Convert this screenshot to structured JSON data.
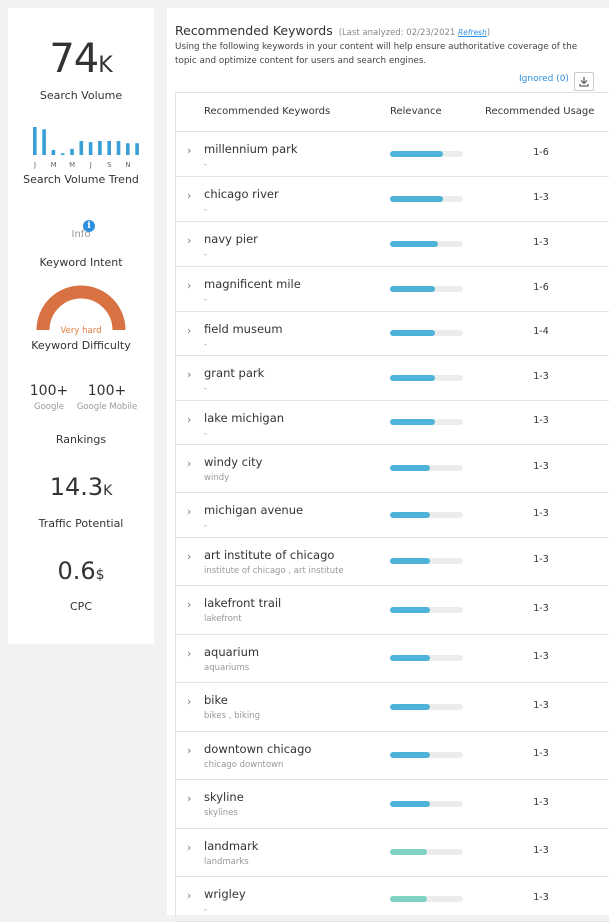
{
  "sidebar": {
    "search_volume": {
      "value": "74",
      "unit": "K",
      "label": "Search Volume"
    },
    "trend": {
      "label": "Search Volume Trend",
      "months": [
        "J",
        "M",
        "M",
        "J",
        "S",
        "N"
      ],
      "values": [
        100,
        92,
        18,
        6,
        22,
        50,
        46,
        50,
        50,
        50,
        42,
        42
      ]
    },
    "info_label": "Info",
    "intent_label": "Keyword Intent",
    "difficulty": {
      "value_label": "Very hard",
      "label": "Keyword Difficulty",
      "level": 1.0
    },
    "rankings": {
      "google_value": "100+",
      "google_label": "Google",
      "mobile_value": "100+",
      "mobile_label": "Google Mobile",
      "label": "Rankings"
    },
    "traffic": {
      "value": "14.3",
      "unit": "K",
      "label": "Traffic Potential"
    },
    "cpc": {
      "value": "0.6",
      "unit": "$",
      "label": "CPC"
    }
  },
  "main": {
    "title": "Recommended Keywords",
    "analyzed": "(Last analyzed: 02/23/2021",
    "refresh": "Refresh",
    "analyzed_close": ")",
    "description": "Using the following keywords in your content will help ensure authoritative coverage of the topic and optimize content for users and search engines.",
    "ignored": "Ignored (0)",
    "columns": [
      "Recommended Keywords",
      "Relevance",
      "Recommended Usage"
    ],
    "colors": {
      "blue": "#4fb3d9",
      "teal": "#7fd1c4"
    },
    "rows": [
      {
        "keyword": "millennium park",
        "variants": "-",
        "relevance": 0.72,
        "color": "blue",
        "usage": "1-6"
      },
      {
        "keyword": "chicago river",
        "variants": "-",
        "relevance": 0.72,
        "color": "blue",
        "usage": "1-3"
      },
      {
        "keyword": "navy pier",
        "variants": "-",
        "relevance": 0.66,
        "color": "blue",
        "usage": "1-3"
      },
      {
        "keyword": "magnificent mile",
        "variants": "-",
        "relevance": 0.61,
        "color": "blue",
        "usage": "1-6"
      },
      {
        "keyword": "field museum",
        "variants": "-",
        "relevance": 0.61,
        "color": "blue",
        "usage": "1-4"
      },
      {
        "keyword": "grant park",
        "variants": "-",
        "relevance": 0.61,
        "color": "blue",
        "usage": "1-3"
      },
      {
        "keyword": "lake michigan",
        "variants": "-",
        "relevance": 0.61,
        "color": "blue",
        "usage": "1-3"
      },
      {
        "keyword": "windy city",
        "variants": "windy",
        "relevance": 0.55,
        "color": "blue",
        "usage": "1-3"
      },
      {
        "keyword": "michigan avenue",
        "variants": "-",
        "relevance": 0.55,
        "color": "blue",
        "usage": "1-3"
      },
      {
        "keyword": "art institute of chicago",
        "variants": "institute of chicago ,  art institute",
        "relevance": 0.55,
        "color": "blue",
        "usage": "1-3"
      },
      {
        "keyword": "lakefront trail",
        "variants": "lakefront",
        "relevance": 0.55,
        "color": "blue",
        "usage": "1-3"
      },
      {
        "keyword": "aquarium",
        "variants": "aquariums",
        "relevance": 0.55,
        "color": "blue",
        "usage": "1-3"
      },
      {
        "keyword": "bike",
        "variants": "bikes ,  biking",
        "relevance": 0.55,
        "color": "blue",
        "usage": "1-3"
      },
      {
        "keyword": "downtown chicago",
        "variants": "chicago downtown",
        "relevance": 0.55,
        "color": "blue",
        "usage": "1-3"
      },
      {
        "keyword": "skyline",
        "variants": "skylines",
        "relevance": 0.55,
        "color": "blue",
        "usage": "1-3"
      },
      {
        "keyword": "landmark",
        "variants": "landmarks",
        "relevance": 0.5,
        "color": "teal",
        "usage": "1-3"
      },
      {
        "keyword": "wrigley",
        "variants": "-",
        "relevance": 0.5,
        "color": "teal",
        "usage": "1-3"
      }
    ]
  }
}
